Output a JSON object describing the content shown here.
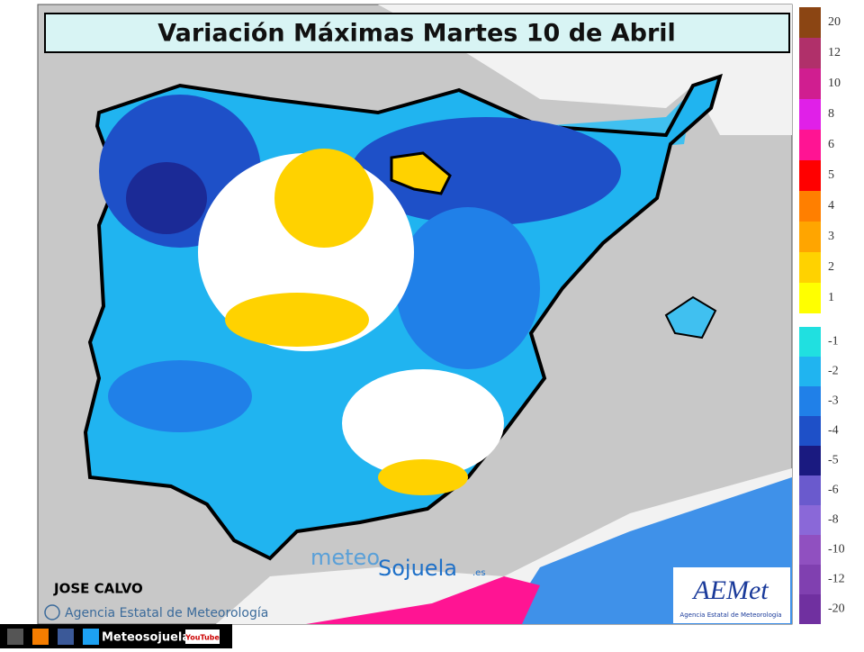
{
  "header": {
    "title": "Variación Máximas Martes 10 de Abril"
  },
  "legend": {
    "positive": [
      {
        "label": 20,
        "color": "#8b4513"
      },
      {
        "label": 12,
        "color": "#b0306a"
      },
      {
        "label": 10,
        "color": "#d01e90"
      },
      {
        "label": 8,
        "color": "#e020e8"
      },
      {
        "label": 6,
        "color": "#ff1493"
      },
      {
        "label": 5,
        "color": "#ff0000"
      },
      {
        "label": 4,
        "color": "#ff7f00"
      },
      {
        "label": 3,
        "color": "#ffa500"
      },
      {
        "label": 2,
        "color": "#ffd200"
      },
      {
        "label": 1,
        "color": "#ffff00"
      }
    ],
    "negative": [
      {
        "label": -1,
        "color": "#20e0e0"
      },
      {
        "label": -2,
        "color": "#20b4f0"
      },
      {
        "label": -3,
        "color": "#2080e8"
      },
      {
        "label": -4,
        "color": "#1e50c8"
      },
      {
        "label": -5,
        "color": "#1a1a80"
      },
      {
        "label": -6,
        "color": "#6a5acd"
      },
      {
        "label": -8,
        "color": "#8a68d8"
      },
      {
        "label": -10,
        "color": "#9050c0"
      },
      {
        "label": -12,
        "color": "#8040b0"
      },
      {
        "label": -20,
        "color": "#7030a0"
      }
    ]
  },
  "credits": {
    "author": "JOSE CALVO",
    "agency": "Agencia Estatal de Meteorología",
    "logo_left": "meteo",
    "logo_right": "Sojuela",
    "logo_suffix": ".es",
    "aemet_logo": "AEMet",
    "aemet_sub": "Agencia Estatal de Meteorología"
  },
  "footer": {
    "handle": "Meteosojuela",
    "youtube": "YouTube"
  }
}
